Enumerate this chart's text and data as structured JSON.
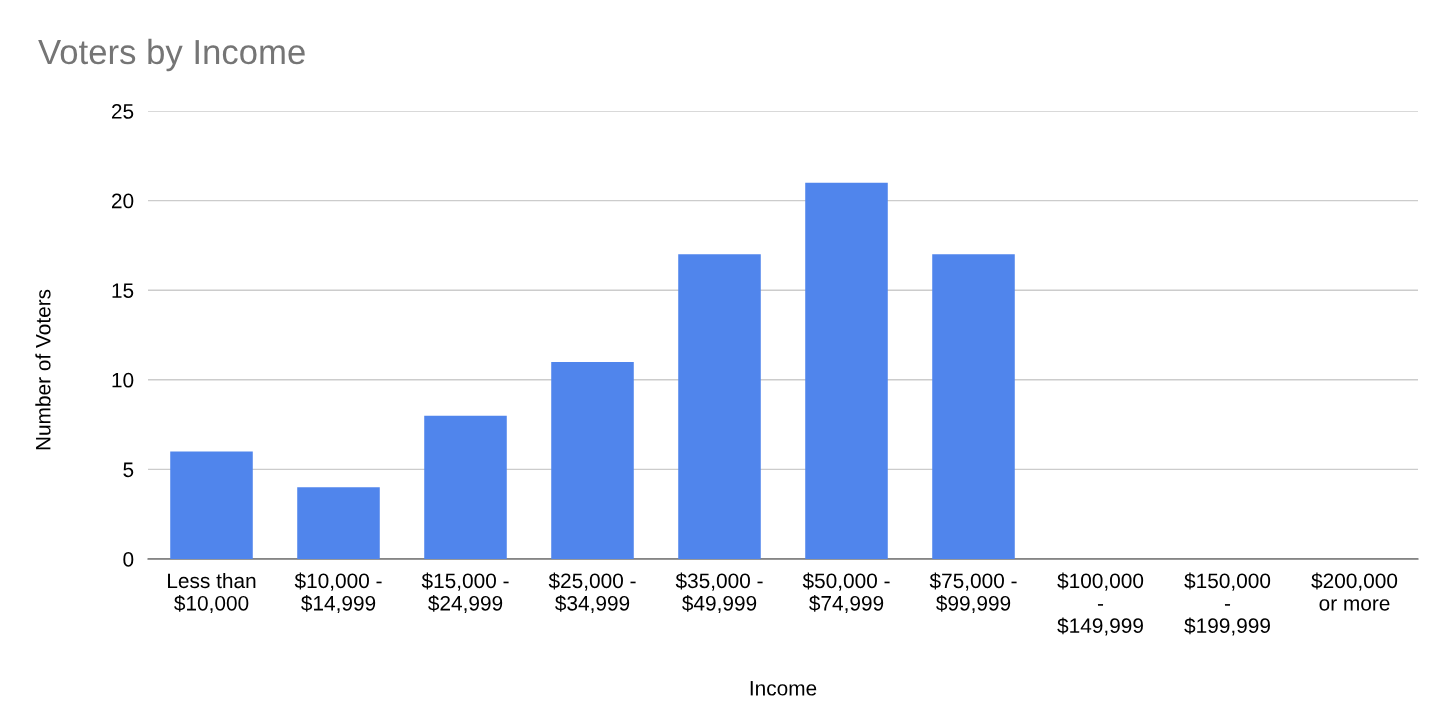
{
  "chart_data": {
    "type": "bar",
    "title": "Voters by Income",
    "xlabel": "Income",
    "ylabel": "Number of Voters",
    "categories": [
      "Less than\n$10,000",
      "$10,000 -\n$14,999",
      "$15,000 -\n$24,999",
      "$25,000 -\n$34,999",
      "$35,000 -\n$49,999",
      "$50,000 -\n$74,999",
      "$75,000 -\n$99,999",
      "$100,000\n-\n$149,999",
      "$150,000\n-\n$199,999",
      "$200,000\nor more"
    ],
    "values": [
      6,
      4,
      8,
      11,
      17,
      21,
      17,
      0,
      0,
      0
    ],
    "color": "#5085ec",
    "ylim": [
      0,
      25
    ],
    "yticks": [
      0,
      5,
      10,
      15,
      20,
      25
    ],
    "grid": "y",
    "legend": false
  }
}
